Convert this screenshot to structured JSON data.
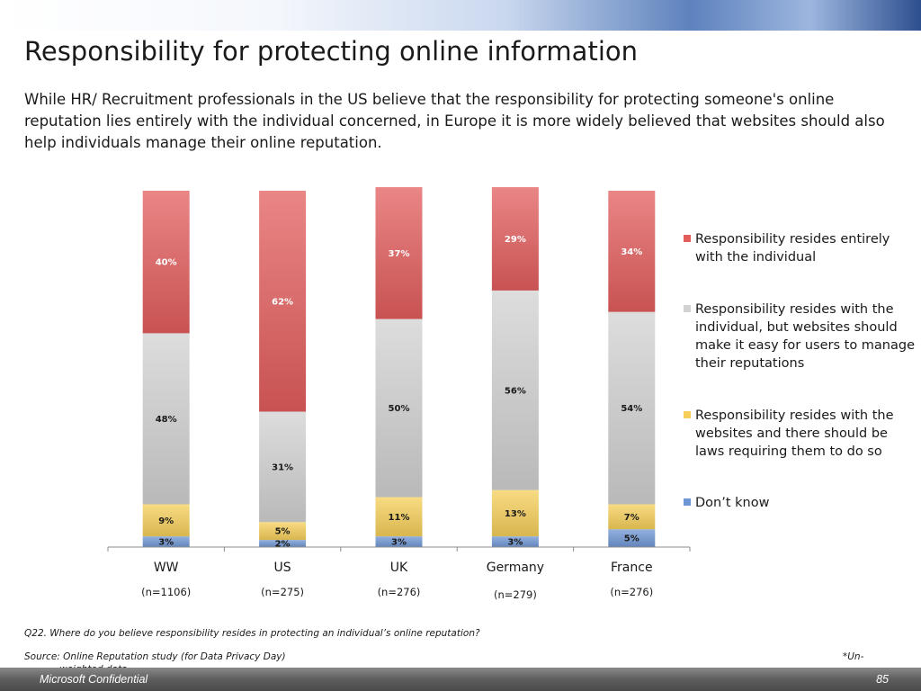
{
  "slide": {
    "title": "Responsibility for protecting online information",
    "subtitle": "While HR/ Recruitment professionals in the US believe that the responsibility for protecting someone's online reputation lies entirely with the individual concerned, in Europe it is more widely believed that websites should also help individuals manage their online reputation.",
    "question": "Q22. Where do you believe responsibility resides in protecting an individual’s online reputation?",
    "source": "Source: Online Reputation study (for Data Privacy Day)",
    "unweighted_part1": "*Un-",
    "unweighted_part2": "weighted data",
    "footer_left": "Microsoft Confidential",
    "footer_right": "85"
  },
  "chart_data": {
    "type": "bar",
    "stacked": true,
    "percent_stacked": true,
    "categories": [
      "WW",
      "US",
      "UK",
      "Germany",
      "France"
    ],
    "sample_sizes": [
      "(n=1106)",
      "(n=275)",
      "(n=276)",
      "(n=279)",
      "(n=276)"
    ],
    "series": [
      {
        "name": "Don’t know",
        "values": [
          3,
          2,
          3,
          3,
          5
        ],
        "labels": [
          "3%",
          "2%",
          "3%",
          "3%",
          "5%"
        ],
        "color": "#6f97d4"
      },
      {
        "name": "Responsibility resides with the websites and there should be laws requiring them to do so",
        "values": [
          9,
          5,
          11,
          13,
          7
        ],
        "labels": [
          "9%",
          "5%",
          "11%",
          "13%",
          "7%"
        ],
        "color": "#f5cf5a"
      },
      {
        "name": "Responsibility resides with the individual, but websites should make it easy for users to manage their reputations",
        "values": [
          48,
          31,
          50,
          56,
          54
        ],
        "labels": [
          "48%",
          "31%",
          "50%",
          "56%",
          "54%"
        ],
        "color": "#d2d2d2"
      },
      {
        "name": "Responsibility resides entirely with the individual",
        "values": [
          40,
          62,
          37,
          29,
          34
        ],
        "labels": [
          "40%",
          "62%",
          "37%",
          "29%",
          "34%"
        ],
        "color": "#e35d5d"
      }
    ],
    "ylim": [
      0,
      100
    ],
    "legend_position": "right",
    "legend_order": [
      3,
      2,
      1,
      0
    ],
    "grid": false
  }
}
